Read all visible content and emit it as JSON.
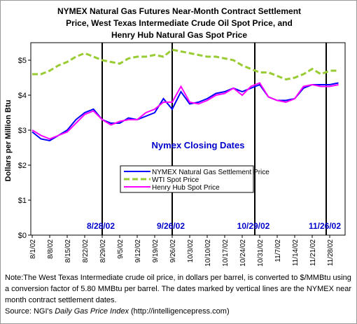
{
  "chart_data": {
    "type": "line",
    "title": [
      "NYMEX Natural Gas Futures Near-Month Contract Settlement",
      "Price, West Texas Intermediate Crude Oil Spot Price, and",
      "Henry Hub Natural Gas Spot Price"
    ],
    "y_label": "Dollars per Million Btu",
    "annotation": "Nymex Closing Dates",
    "closing_dates": [
      "8/28/02",
      "9/26/02",
      "10/29/02",
      "11/26/02"
    ],
    "categories": [
      "8/1/02",
      null,
      "8/8/02",
      null,
      "8/15/02",
      null,
      "8/22/02",
      null,
      "8/29/02",
      null,
      "9/5/02",
      null,
      "9/12/02",
      null,
      "9/19/02",
      null,
      "9/26/02",
      null,
      "10/3/02",
      null,
      "10/10/02",
      null,
      "10/17/02",
      null,
      "10/24/02",
      null,
      "10/31/02",
      null,
      "11/7/02",
      null,
      "11/14/02",
      null,
      "11/21/02",
      null,
      "11/28/02",
      null
    ],
    "series": [
      {
        "name": "NYMEX Natural Gas Settlement Price",
        "color": "#0000ff",
        "style": "solid",
        "values": [
          2.95,
          2.75,
          2.7,
          2.85,
          3.0,
          3.3,
          3.5,
          3.6,
          3.3,
          3.2,
          3.2,
          3.35,
          3.3,
          3.4,
          3.5,
          3.9,
          3.6,
          4.1,
          3.75,
          3.8,
          3.9,
          4.05,
          4.1,
          4.2,
          4.1,
          4.2,
          4.3,
          3.95,
          3.85,
          3.85,
          3.9,
          4.2,
          4.3,
          4.3,
          4.3,
          4.35
        ]
      },
      {
        "name": "WTI Spot Price",
        "color": "#99cc33",
        "style": "dashed",
        "values": [
          4.6,
          4.6,
          4.7,
          4.85,
          4.95,
          5.1,
          5.2,
          5.1,
          5.0,
          4.95,
          4.9,
          5.05,
          5.1,
          5.1,
          5.15,
          5.1,
          5.3,
          5.25,
          5.2,
          5.15,
          5.1,
          5.1,
          5.05,
          5.0,
          4.85,
          4.75,
          4.65,
          4.65,
          4.55,
          4.45,
          4.5,
          4.6,
          4.75,
          4.6,
          4.7,
          4.7
        ]
      },
      {
        "name": "Henry Hub Spot Price",
        "color": "#ff00ff",
        "style": "solid",
        "values": [
          3.0,
          2.85,
          2.75,
          2.85,
          2.95,
          3.2,
          3.45,
          3.55,
          3.3,
          3.15,
          3.25,
          3.3,
          3.3,
          3.5,
          3.6,
          3.8,
          3.8,
          4.25,
          3.8,
          3.75,
          3.85,
          4.0,
          4.05,
          4.2,
          4.0,
          4.25,
          4.35,
          3.95,
          3.85,
          3.8,
          3.9,
          4.25,
          4.3,
          4.25,
          4.25,
          4.3
        ]
      }
    ],
    "ylim": [
      0,
      5.5
    ],
    "yticks": [
      {
        "value": 0,
        "label": "$0"
      },
      {
        "value": 1,
        "label": "$1"
      },
      {
        "value": 2,
        "label": "$2"
      },
      {
        "value": 3,
        "label": "$3"
      },
      {
        "value": 4,
        "label": "$4"
      },
      {
        "value": 5,
        "label": "$5"
      }
    ],
    "note": "Note:The West Texas Intermediate crude oil price, in dollars per barrel,  is converted to $/MMBtu using a conversion factor of 5.80 MMBtu per barrel.  The dates marked by vertical lines are the NYMEX near month contract settlement dates.",
    "source_prefix": "Source:  NGI's",
    "source_title": "Daily Gas Price Index",
    "source_suffix": "(http://intelligencepress.com)"
  }
}
